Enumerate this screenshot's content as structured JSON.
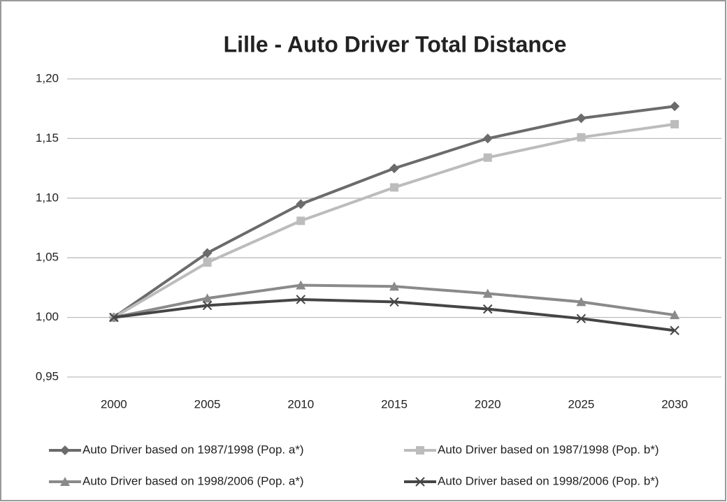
{
  "chart_data": {
    "type": "line",
    "title": "Lille - Auto Driver Total Distance",
    "categories": [
      "2000",
      "2005",
      "2010",
      "2015",
      "2020",
      "2025",
      "2030"
    ],
    "series": [
      {
        "name": "Auto Driver based on 1987/1998 (Pop. a*)",
        "color": "#6b6b6b",
        "marker": "diamond",
        "values": [
          1.0,
          1.054,
          1.095,
          1.125,
          1.15,
          1.167,
          1.177
        ]
      },
      {
        "name": "Auto Driver based on 1987/1998 (Pop. b*)",
        "color": "#bcbcbc",
        "marker": "square",
        "values": [
          1.0,
          1.046,
          1.081,
          1.109,
          1.134,
          1.151,
          1.162
        ]
      },
      {
        "name": "Auto Driver based on 1998/2006 (Pop. a*)",
        "color": "#8a8a8a",
        "marker": "triangle",
        "values": [
          1.0,
          1.016,
          1.027,
          1.026,
          1.02,
          1.013,
          1.002
        ]
      },
      {
        "name": "Auto Driver based on 1998/2006 (Pop. b*)",
        "color": "#454545",
        "marker": "x",
        "values": [
          1.0,
          1.01,
          1.015,
          1.013,
          1.007,
          0.999,
          0.989
        ]
      }
    ],
    "ylim": [
      0.95,
      1.2
    ],
    "yticks": [
      {
        "value": 0.95,
        "label": "0,95"
      },
      {
        "value": 1.0,
        "label": "1,00"
      },
      {
        "value": 1.05,
        "label": "1,05"
      },
      {
        "value": 1.1,
        "label": "1,10"
      },
      {
        "value": 1.15,
        "label": "1,15"
      },
      {
        "value": 1.2,
        "label": "1,20"
      }
    ],
    "grid": true,
    "legend": "bottom"
  }
}
